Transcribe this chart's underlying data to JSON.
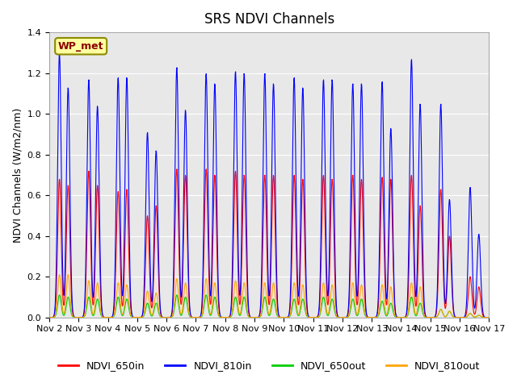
{
  "title": "SRS NDVI Channels",
  "ylabel": "NDVI Channels (W/m2/nm)",
  "xlabel": "",
  "annotation": "WP_met",
  "annotation_color": "#8B0000",
  "annotation_bg": "#FFFFA0",
  "annotation_border": "#8B8B00",
  "ylim": [
    0,
    1.4
  ],
  "background_color": "#E8E8E8",
  "legend_labels": [
    "NDVI_650in",
    "NDVI_810in",
    "NDVI_650out",
    "NDVI_810out"
  ],
  "legend_colors": [
    "#FF0000",
    "#0000FF",
    "#00CC00",
    "#FFA500"
  ],
  "x_tick_labels": [
    "Nov 2",
    "Nov 3",
    "Nov 4",
    "Nov 5",
    "Nov 6",
    "Nov 7",
    "Nov 8",
    "Nov 9",
    "Nov 10",
    "Nov 11",
    "Nov 12",
    "Nov 13",
    "Nov 14",
    "Nov 15",
    "Nov 16",
    "Nov 17"
  ],
  "days": 15,
  "series": {
    "NDVI_650in": {
      "color": "#FF0000",
      "daily_peaks": [
        0.68,
        0.72,
        0.62,
        0.5,
        0.73,
        0.73,
        0.72,
        0.7,
        0.7,
        0.7,
        0.7,
        0.69,
        0.7,
        0.63,
        0.2
      ],
      "daily_peaks2": [
        0.65,
        0.65,
        0.63,
        0.55,
        0.7,
        0.7,
        0.7,
        0.7,
        0.68,
        0.68,
        0.68,
        0.68,
        0.55,
        0.4,
        0.15
      ]
    },
    "NDVI_810in": {
      "color": "#0000FF",
      "daily_peaks": [
        1.3,
        1.17,
        1.18,
        0.91,
        1.23,
        1.2,
        1.21,
        1.2,
        1.18,
        1.17,
        1.15,
        1.16,
        1.27,
        1.05,
        0.64
      ],
      "daily_peaks2": [
        1.13,
        1.04,
        1.18,
        0.82,
        1.02,
        1.15,
        1.2,
        1.15,
        1.13,
        1.17,
        1.15,
        0.93,
        1.05,
        0.58,
        0.41
      ]
    },
    "NDVI_650out": {
      "color": "#00CC00",
      "daily_peaks": [
        0.11,
        0.1,
        0.1,
        0.07,
        0.11,
        0.11,
        0.1,
        0.1,
        0.09,
        0.1,
        0.09,
        0.08,
        0.1,
        0.04,
        0.02
      ],
      "daily_peaks2": [
        0.1,
        0.09,
        0.09,
        0.07,
        0.1,
        0.1,
        0.1,
        0.09,
        0.09,
        0.09,
        0.09,
        0.07,
        0.07,
        0.03,
        0.01
      ]
    },
    "NDVI_810out": {
      "color": "#FFA500",
      "daily_peaks": [
        0.21,
        0.18,
        0.17,
        0.13,
        0.19,
        0.19,
        0.18,
        0.17,
        0.17,
        0.17,
        0.17,
        0.16,
        0.17,
        0.04,
        0.02
      ],
      "daily_peaks2": [
        0.21,
        0.17,
        0.16,
        0.12,
        0.17,
        0.17,
        0.17,
        0.17,
        0.16,
        0.16,
        0.16,
        0.15,
        0.15,
        0.03,
        0.01
      ]
    }
  }
}
